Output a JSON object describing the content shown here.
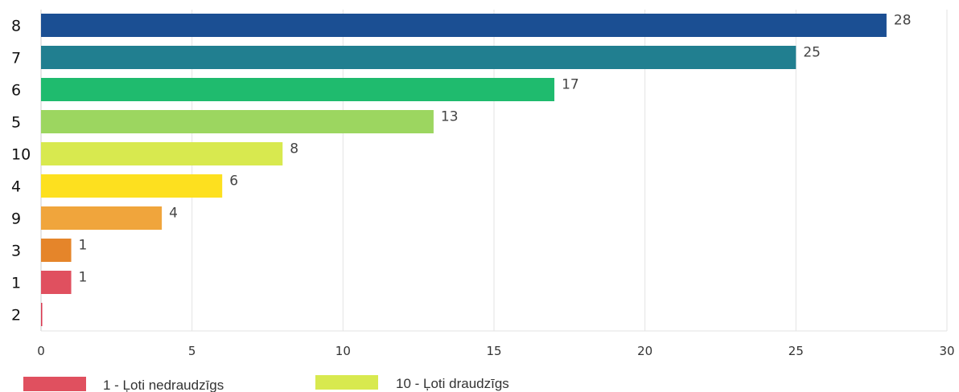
{
  "chart_data": {
    "type": "bar",
    "orientation": "horizontal",
    "categories": [
      "8",
      "7",
      "6",
      "5",
      "10",
      "4",
      "9",
      "3",
      "1",
      "2"
    ],
    "values": [
      28,
      25,
      17,
      13,
      8,
      6,
      4,
      1,
      1,
      0
    ],
    "colors": [
      "#1b4f93",
      "#217f90",
      "#1fbb6e",
      "#9cd660",
      "#d8e94f",
      "#fde01f",
      "#f0a53c",
      "#e5852a",
      "#e0505f",
      "#d9364e"
    ],
    "xlim": [
      0,
      30
    ],
    "xticks": [
      0,
      5,
      10,
      15,
      20,
      25,
      30
    ],
    "grid": true,
    "legend_position": "bottom-left",
    "legend": [
      {
        "label": "1 - Ļoti nedraudzīgs",
        "color": "#e0505f"
      },
      {
        "label": "10 - Ļoti draudzīgs",
        "color": "#d8e94f"
      }
    ]
  }
}
